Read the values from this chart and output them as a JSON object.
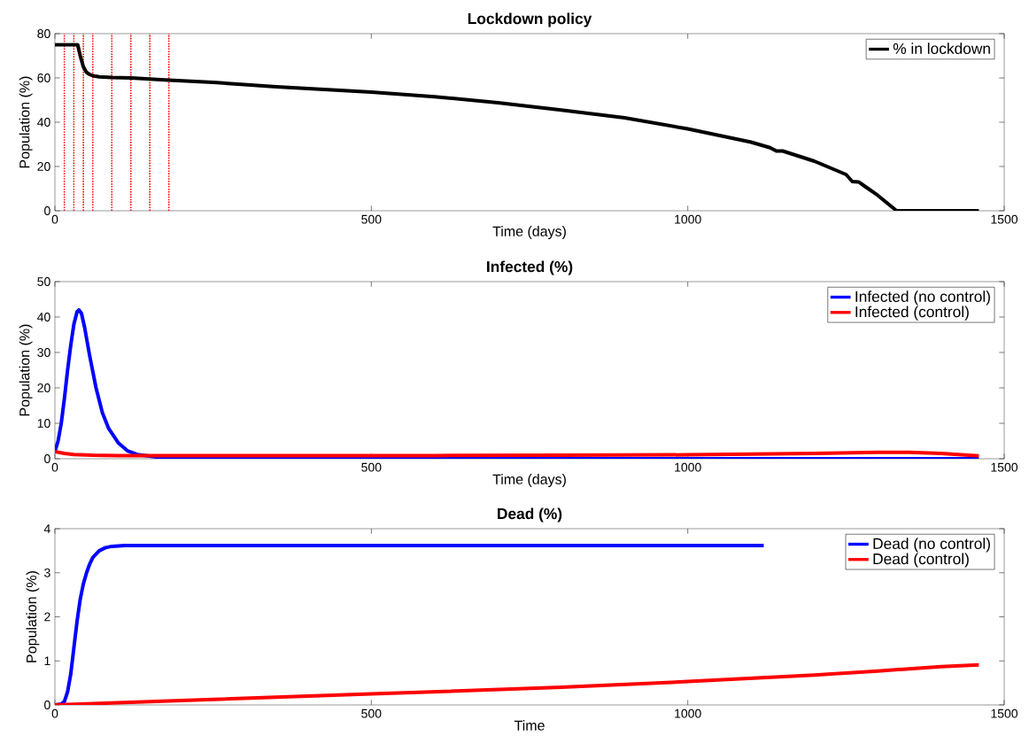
{
  "chart_data": [
    {
      "type": "line",
      "title": "Lockdown policy",
      "xlabel": "Time (days)",
      "ylabel": "Population (%)",
      "xlim": [
        0,
        1500
      ],
      "xticks": [
        0,
        500,
        1000,
        1500
      ],
      "ylim": [
        0,
        80
      ],
      "yticks": [
        0,
        20,
        40,
        60,
        80
      ],
      "legend": "top right",
      "series": [
        {
          "name": "% in lockdown",
          "color": "#000000",
          "x": [
            0,
            15,
            30,
            36,
            40,
            45,
            50,
            55,
            60,
            70,
            90,
            120,
            180,
            250,
            350,
            500,
            600,
            700,
            800,
            900,
            1000,
            1050,
            1100,
            1130,
            1140,
            1150,
            1200,
            1250,
            1260,
            1270,
            1280,
            1300,
            1330,
            1400,
            1460
          ],
          "values": [
            75,
            75,
            75,
            75,
            70,
            65,
            62.5,
            61.5,
            61,
            60.5,
            60.2,
            60,
            59,
            58,
            56,
            53.6,
            51.5,
            48.8,
            45.5,
            42,
            37,
            34,
            31,
            28.5,
            27,
            27,
            22.4,
            16.4,
            13.2,
            13,
            11,
            7,
            0,
            0,
            0
          ]
        }
      ],
      "ref_lines": [
        {
          "axis": "x",
          "value": 15,
          "color": "#ff0000",
          "line_style": "dotted"
        },
        {
          "axis": "x",
          "value": 30,
          "color": "#ff0000",
          "line_style": "dotted"
        },
        {
          "axis": "x",
          "value": 45,
          "color": "#ff0000",
          "line_style": "dotted"
        },
        {
          "axis": "x",
          "value": 60,
          "color": "#ff0000",
          "line_style": "dotted"
        },
        {
          "axis": "x",
          "value": 90,
          "color": "#ff0000",
          "line_style": "dotted"
        },
        {
          "axis": "x",
          "value": 120,
          "color": "#ff0000",
          "line_style": "dotted"
        },
        {
          "axis": "x",
          "value": 150,
          "color": "#ff0000",
          "line_style": "dotted"
        },
        {
          "axis": "x",
          "value": 180,
          "color": "#ff0000",
          "line_style": "dotted"
        }
      ]
    },
    {
      "type": "line",
      "title": "Infected (%)",
      "xlabel": "Time (days)",
      "ylabel": "Population (%)",
      "xlim": [
        0,
        1500
      ],
      "xticks": [
        0,
        500,
        1000,
        1500
      ],
      "ylim": [
        0,
        50
      ],
      "yticks": [
        0,
        10,
        20,
        30,
        40,
        50
      ],
      "legend": "top right",
      "series": [
        {
          "name": "Infected (no  control)",
          "color": "#0000ff",
          "x": [
            0,
            5,
            10,
            15,
            20,
            25,
            30,
            35,
            38,
            42,
            47,
            55,
            65,
            75,
            85,
            100,
            115,
            130,
            160,
            200,
            300,
            600,
            1000,
            1460
          ],
          "values": [
            2,
            5,
            10,
            17,
            25,
            32,
            38,
            41.5,
            42,
            41,
            37,
            29,
            20,
            13,
            8.5,
            4.5,
            2.2,
            1.2,
            0.5,
            0.1,
            0,
            0,
            0,
            0
          ]
        },
        {
          "name": "Infected (control)",
          "color": "#ff0000",
          "x": [
            0,
            15,
            30,
            60,
            100,
            200,
            400,
            600,
            800,
            1000,
            1100,
            1200,
            1300,
            1350,
            1400,
            1460
          ],
          "values": [
            2,
            1.5,
            1.2,
            1,
            0.9,
            0.9,
            0.9,
            0.9,
            1,
            1.1,
            1.3,
            1.5,
            1.8,
            1.8,
            1.5,
            0.8
          ]
        }
      ]
    },
    {
      "type": "line",
      "title": "Dead (%)",
      "xlabel": "Time",
      "ylabel": "Population (%)",
      "xlim": [
        0,
        1500
      ],
      "xticks": [
        0,
        500,
        1000,
        1500
      ],
      "ylim": [
        0,
        4
      ],
      "yticks": [
        0,
        1,
        2,
        3,
        4
      ],
      "legend": "top right",
      "series": [
        {
          "name": "Dead (no  control)",
          "color": "#0000ff",
          "x": [
            0,
            10,
            15,
            20,
            25,
            30,
            35,
            40,
            45,
            50,
            55,
            60,
            70,
            80,
            90,
            110,
            150,
            300,
            600,
            900,
            1120
          ],
          "values": [
            0,
            0.02,
            0.08,
            0.3,
            0.7,
            1.3,
            1.9,
            2.4,
            2.75,
            3.0,
            3.2,
            3.35,
            3.5,
            3.57,
            3.6,
            3.62,
            3.62,
            3.62,
            3.62,
            3.62,
            3.62
          ]
        },
        {
          "name": "Dead (control)",
          "color": "#ff0000",
          "x": [
            0,
            200,
            500,
            800,
            1000,
            1200,
            1300,
            1400,
            1460
          ],
          "values": [
            0,
            0.1,
            0.25,
            0.4,
            0.53,
            0.68,
            0.77,
            0.87,
            0.91
          ]
        }
      ]
    }
  ]
}
